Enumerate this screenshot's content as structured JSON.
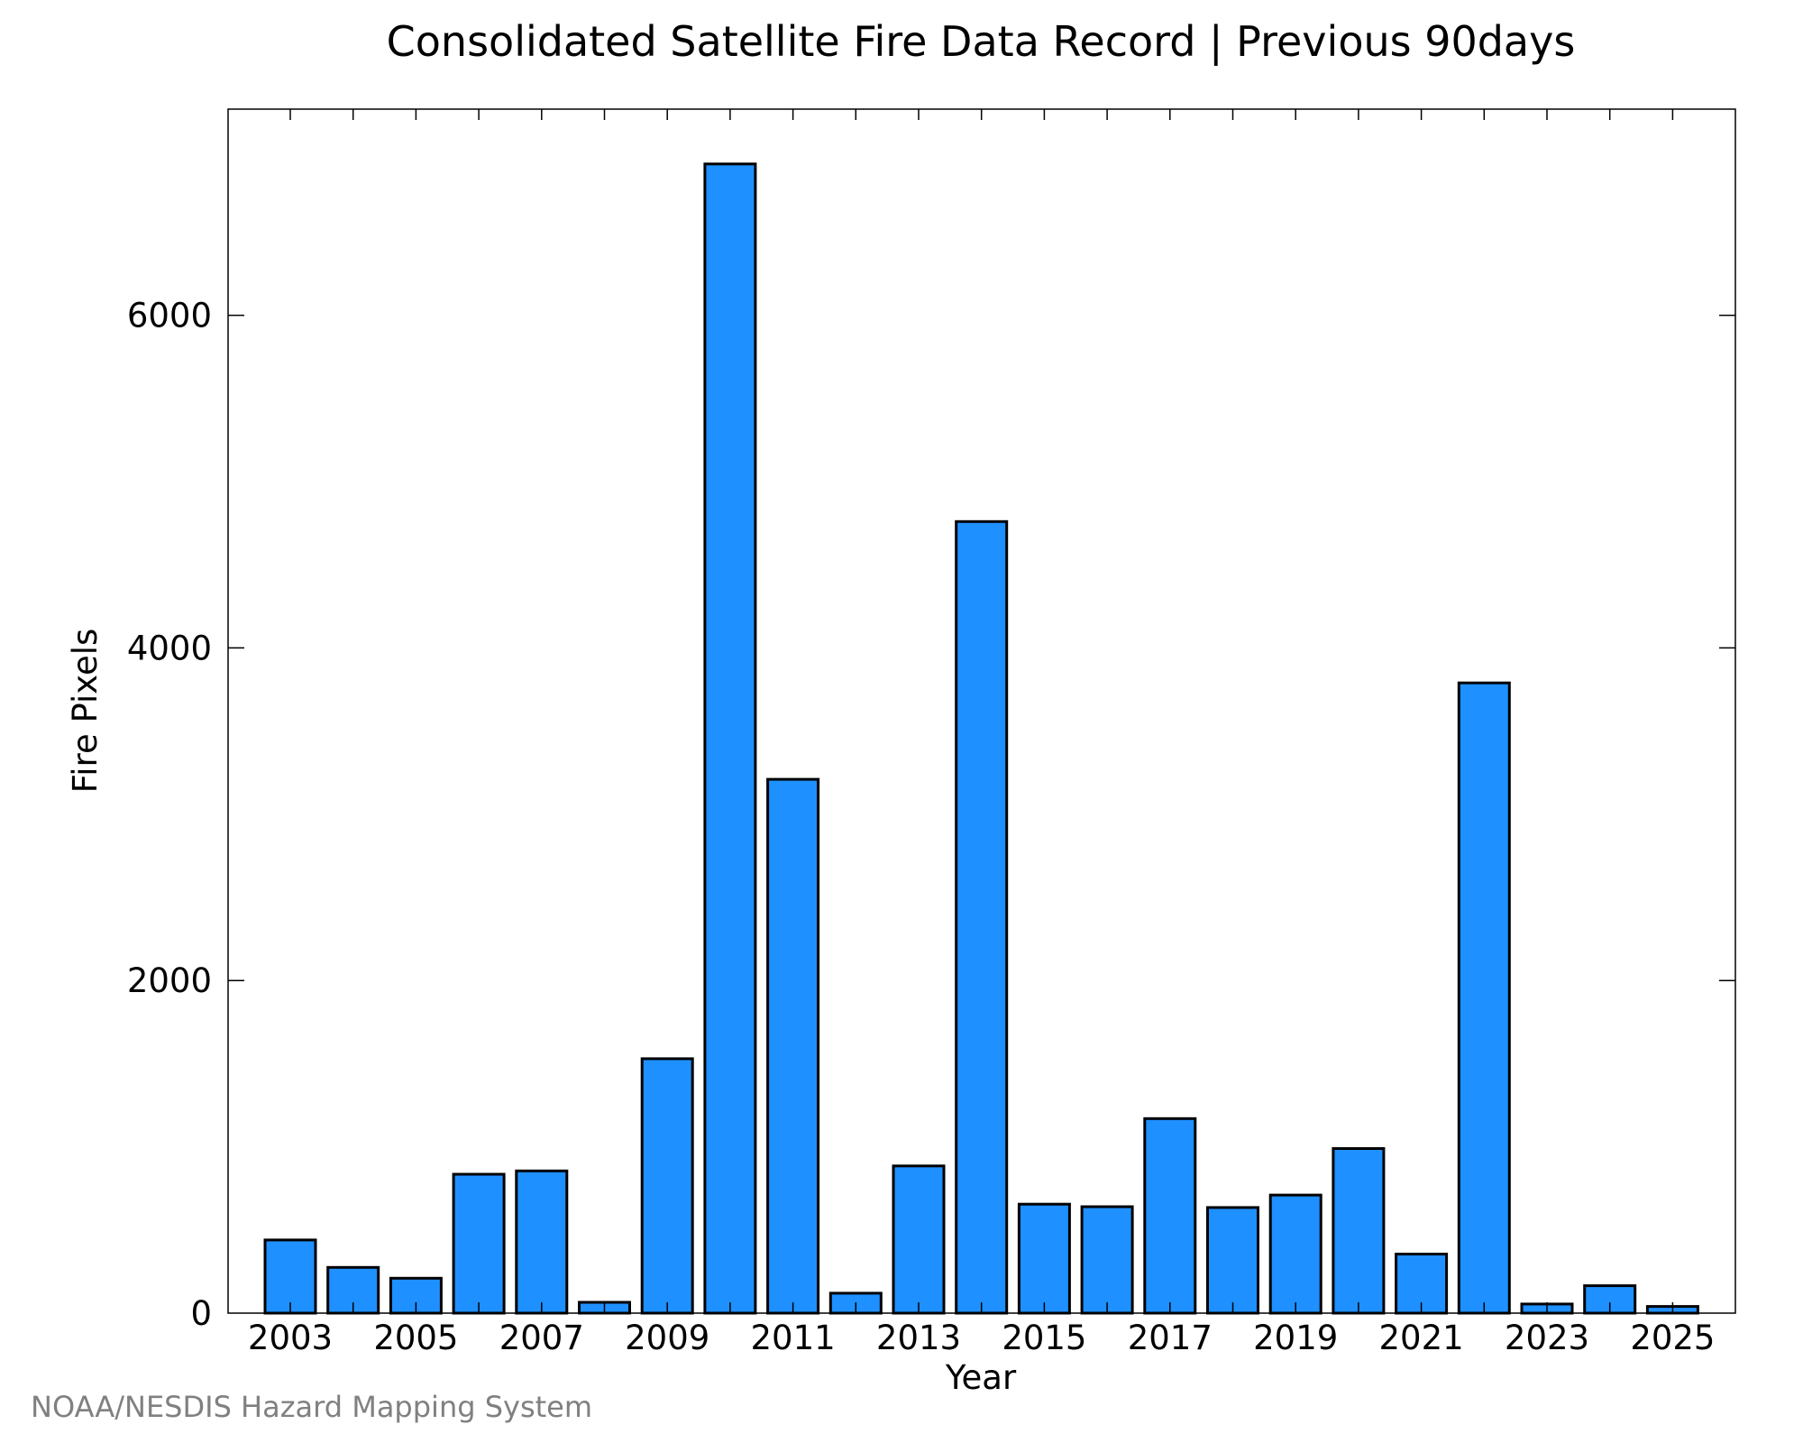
{
  "chart_data": {
    "type": "bar",
    "title": "Consolidated Satellite Fire Data Record | Previous 90days",
    "xlabel": "Year",
    "ylabel": "Fire Pixels",
    "categories": [
      "2003",
      "2004",
      "2005",
      "2006",
      "2007",
      "2008",
      "2009",
      "2010",
      "2011",
      "2012",
      "2013",
      "2014",
      "2015",
      "2016",
      "2017",
      "2018",
      "2019",
      "2020",
      "2021",
      "2022",
      "2023",
      "2024",
      "2025"
    ],
    "values": [
      440,
      275,
      210,
      835,
      855,
      65,
      1530,
      6910,
      3210,
      120,
      885,
      4760,
      655,
      640,
      1170,
      635,
      710,
      990,
      355,
      3790,
      55,
      165,
      40
    ],
    "x_tick_labels": [
      "2003",
      "2005",
      "2007",
      "2009",
      "2011",
      "2013",
      "2015",
      "2017",
      "2019",
      "2021",
      "2023",
      "2025"
    ],
    "y_tick_labels": [
      "0",
      "2000",
      "4000",
      "6000"
    ],
    "ylim": [
      0,
      7240
    ],
    "grid": false,
    "legend": "none",
    "bar_color": "#1e90ff",
    "bar_edge_color": "#000000"
  },
  "footer": {
    "credit": "NOAA/NESDIS Hazard Mapping System"
  }
}
